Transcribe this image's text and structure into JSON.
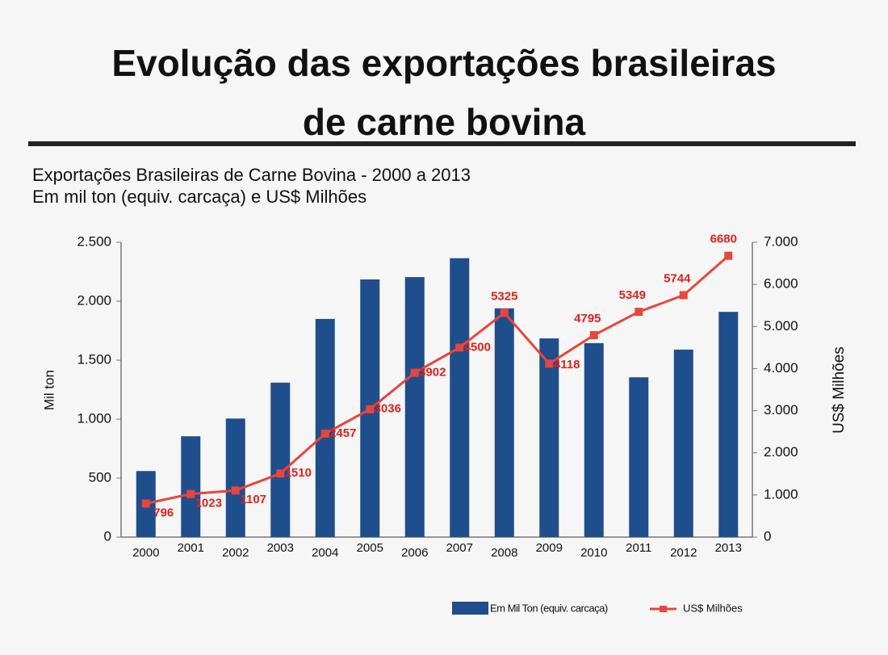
{
  "chart_data": {
    "type": "bar_line",
    "title_line1": "Evolução das exportações brasileiras",
    "title_line2": "de carne bovina",
    "subtitle_line1": "Exportações Brasileiras de Carne Bovina - 2000 a 2013",
    "subtitle_line2": "Em mil ton (equiv. carcaça) e US$ Milhões",
    "ylabel": "Mil ton",
    "y2label": "US$ Milhões",
    "categories": [
      "2000",
      "2001",
      "2002",
      "2003",
      "2004",
      "2005",
      "2006",
      "2007",
      "2008",
      "2009",
      "2010",
      "2011",
      "2012",
      "2013"
    ],
    "series": [
      {
        "name": "Em Mil Ton (equiv. carcaça)",
        "type": "bar",
        "color": "#1f4e8c",
        "values": [
          560,
          855,
          1005,
          1310,
          1850,
          2185,
          2205,
          2365,
          1940,
          1685,
          1645,
          1355,
          1590,
          1910
        ]
      },
      {
        "name": "US$ Milhões",
        "type": "line",
        "axis": "y2",
        "color": "#e8453c",
        "label_color": "#e0201b",
        "values": [
          796,
          1023,
          1107,
          1510,
          2457,
          3036,
          3902,
          4500,
          5325,
          4118,
          4795,
          5349,
          5744,
          6680
        ]
      }
    ],
    "ylim": [
      0,
      2500
    ],
    "yticks": [
      0,
      500,
      {
        "value": 1000,
        "label": "1.000"
      },
      {
        "value": 1500,
        "label": "1.500"
      },
      {
        "value": 2000,
        "label": "2.000"
      },
      {
        "value": 2500,
        "label": "2.500"
      }
    ],
    "y2lim": [
      0,
      7000
    ],
    "y2ticks": [
      0,
      {
        "value": 1000,
        "label": "1.000"
      },
      {
        "value": 2000,
        "label": "2.000"
      },
      {
        "value": 3000,
        "label": "3.000"
      },
      {
        "value": 4000,
        "label": "4.000"
      },
      {
        "value": 5000,
        "label": "5.000"
      },
      {
        "value": 6000,
        "label": "6.000"
      },
      {
        "value": 7000,
        "label": "7.000"
      }
    ]
  }
}
